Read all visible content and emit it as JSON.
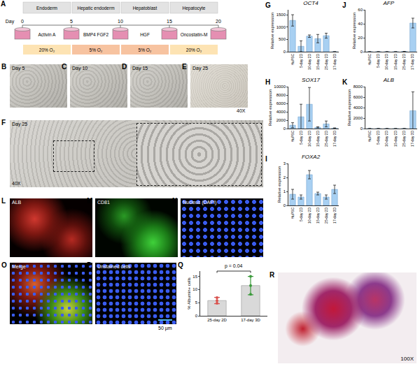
{
  "schematic": {
    "panel": "A",
    "day_label": "Day",
    "days": [
      0,
      5,
      10,
      15,
      20
    ],
    "stages": [
      "Endoderm",
      "Hepatic endoderm",
      "Hepatoblast",
      "Hepatocyte"
    ],
    "factors": [
      "Activin A",
      "BMP4 FGF2",
      "HGF",
      "Oncostatin-M"
    ],
    "oxygen": [
      "20% O₂",
      "5% O₂",
      "5% O₂",
      "20% O₂"
    ]
  },
  "images": [
    {
      "panel": "B",
      "caption": "Day 5"
    },
    {
      "panel": "C",
      "caption": "Day 10"
    },
    {
      "panel": "D",
      "caption": "Day 15"
    },
    {
      "panel": "E",
      "caption": "Day 25",
      "magnification": "40X"
    },
    {
      "panel": "F",
      "caption": "Day 25",
      "magnification": "40X"
    },
    {
      "panel": "L",
      "caption": "ALB"
    },
    {
      "panel": "M",
      "caption": "CD81"
    },
    {
      "panel": "N",
      "caption": "Nucleus (DAPI)"
    },
    {
      "panel": "O",
      "caption": "Merge"
    },
    {
      "panel": "P",
      "caption": "Unstained cells",
      "scale_bar": "50 µm"
    },
    {
      "panel": "R",
      "magnification": "100X"
    }
  ],
  "chart_data": [
    {
      "panel": "G",
      "type": "bar",
      "title": "OCT4",
      "y_label": "Relative expression",
      "categories": [
        "HuPSC",
        "5-day 2D",
        "10-day 2D",
        "15-day 2D",
        "25-day 2D",
        "17-day 3D"
      ],
      "values": [
        1270,
        220,
        630,
        530,
        650,
        0
      ],
      "errors": [
        230,
        220,
        50,
        170,
        100,
        0
      ],
      "color": "#a8d0f2",
      "ylim": [
        0,
        1700
      ],
      "yticks": [
        0,
        500,
        1000,
        1500
      ],
      "grid": false
    },
    {
      "panel": "H",
      "type": "bar",
      "title": "SOX17",
      "y_label": "Relative expression",
      "categories": [
        "HuPSC",
        "5-day 2D",
        "10-day 2D",
        "15-day 2D",
        "25-day 2D",
        "17-day 3D"
      ],
      "values": [
        800,
        2800,
        5800,
        300,
        1100,
        100
      ],
      "errors": [
        600,
        3000,
        4000,
        120,
        700,
        60
      ],
      "color": "#a8d0f2",
      "ylim": [
        0,
        10000
      ],
      "yticks": [
        0,
        2000,
        4000,
        6000,
        8000,
        10000
      ],
      "grid": false
    },
    {
      "panel": "I",
      "type": "bar",
      "title": "FOXA2",
      "y_label": "Relative expression",
      "categories": [
        "HuPSC",
        "5-day 2D",
        "10-day 2D",
        "15-day 2D",
        "25-day 2D",
        "17-day 3D"
      ],
      "values": [
        0.8,
        0.6,
        2.2,
        0.85,
        0.6,
        1.15
      ],
      "errors": [
        0.35,
        0.15,
        0.3,
        0.1,
        0.15,
        0.3
      ],
      "color": "#a8d0f2",
      "ylim": [
        0,
        3
      ],
      "yticks": [
        0,
        1,
        2,
        3
      ],
      "grid": false
    },
    {
      "panel": "J",
      "type": "bar",
      "title": "AFP",
      "y_label": "Relative expression",
      "categories": [
        "HuPSC",
        "5-day 2D",
        "10-day 2D",
        "15-day 2D",
        "25-day 2D",
        "17-day 3D"
      ],
      "values": [
        0,
        0,
        0,
        0,
        0.3,
        41
      ],
      "errors": [
        0,
        0,
        0,
        0,
        0.2,
        7
      ],
      "color": "#a8d0f2",
      "ylim": [
        0,
        60
      ],
      "yticks": [
        0,
        20,
        40,
        60
      ],
      "grid": false
    },
    {
      "panel": "K",
      "type": "bar",
      "title": "ALB",
      "y_label": "Relative expression",
      "categories": [
        "HuPSC",
        "5-day 2D",
        "10-day 2D",
        "15-day 2D",
        "25-day 2D",
        "17-day 3D"
      ],
      "values": [
        0,
        0,
        0,
        0,
        0,
        3400
      ],
      "errors": [
        0,
        0,
        0,
        0,
        0,
        3600
      ],
      "color": "#a8d0f2",
      "ylim": [
        0,
        8000
      ],
      "yticks": [
        0,
        2000,
        4000,
        6000,
        8000
      ],
      "grid": false
    },
    {
      "panel": "Q",
      "type": "bar",
      "y_label": "% Albumin+ cells",
      "categories": [
        "25-day 2D",
        "17-day 3D"
      ],
      "values": [
        5.8,
        11.5
      ],
      "errors": [
        1.2,
        3.5
      ],
      "points": [
        [
          4.8,
          5.8,
          6.9
        ],
        [
          8.2,
          11.5,
          15
        ]
      ],
      "color": "#d9d9d9",
      "colors": [
        "#d9534f",
        "#3a9a3a"
      ],
      "annotations": [
        "p = 0.04"
      ],
      "ylim": [
        0,
        17
      ],
      "yticks": [
        0,
        5,
        10,
        15
      ],
      "grid": false
    }
  ]
}
